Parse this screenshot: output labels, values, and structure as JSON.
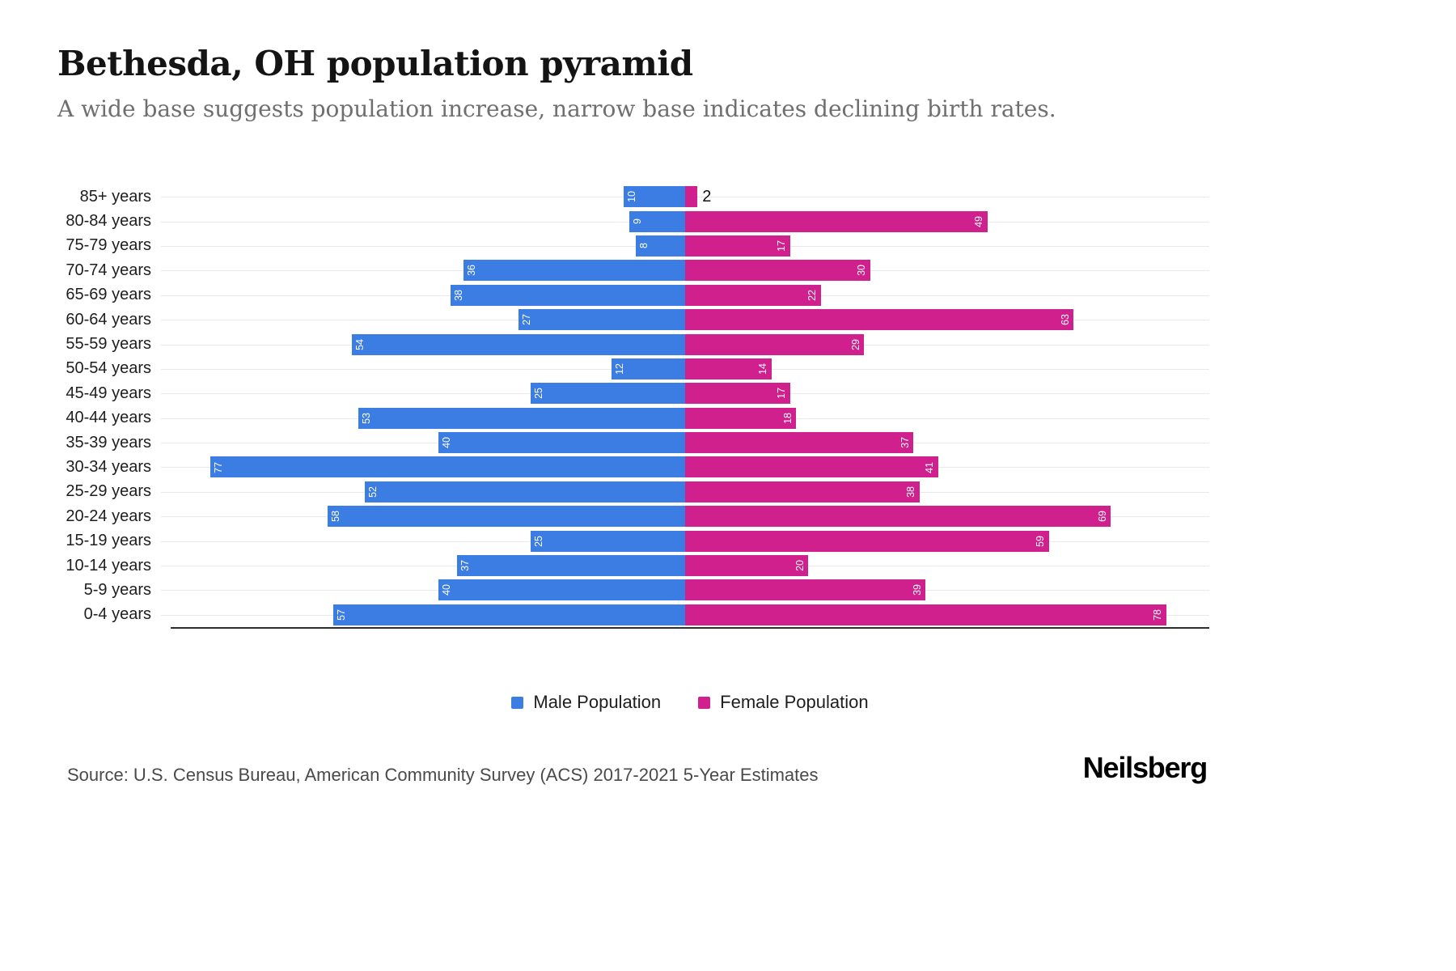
{
  "chart_data": {
    "type": "bar",
    "variant": "population-pyramid",
    "title": "Bethesda, OH population pyramid",
    "subtitle": "A wide base suggests population increase, narrow base indicates declining birth rates.",
    "categories": [
      "85+ years",
      "80-84 years",
      "75-79 years",
      "70-74 years",
      "65-69 years",
      "60-64 years",
      "55-59 years",
      "50-54 years",
      "45-49 years",
      "40-44 years",
      "35-39 years",
      "30-34 years",
      "25-29 years",
      "20-24 years",
      "15-19 years",
      "10-14 years",
      "5-9 years",
      "0-4 years"
    ],
    "series": [
      {
        "name": "Male Population",
        "color": "#3b7de2",
        "direction": "left",
        "values": [
          10,
          9,
          8,
          36,
          38,
          27,
          54,
          12,
          25,
          53,
          40,
          77,
          52,
          58,
          25,
          37,
          40,
          57
        ]
      },
      {
        "name": "Female Population",
        "color": "#d0208e",
        "direction": "right",
        "values": [
          2,
          49,
          17,
          30,
          22,
          63,
          29,
          14,
          17,
          18,
          37,
          41,
          38,
          69,
          59,
          20,
          39,
          78
        ]
      }
    ],
    "xlim": [
      0,
      85
    ],
    "grid": "horizontal-light",
    "value_labels": "inside-rotated-white",
    "legend_position": "bottom-center"
  },
  "footer": {
    "source": "Source: U.S. Census Bureau, American Community Survey (ACS) 2017-2021 5-Year Estimates",
    "logo": "Neilsberg"
  }
}
